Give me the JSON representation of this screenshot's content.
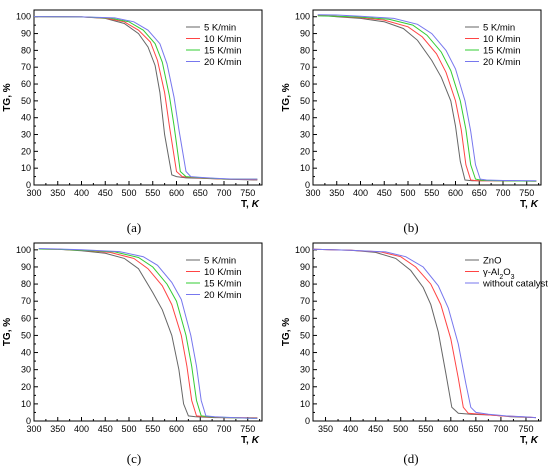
{
  "chart_data": [
    {
      "type": "line",
      "caption": "(a)",
      "xlabel": "T,",
      "xlabel_unit": "K",
      "ylabel": "TG, %",
      "xlim": [
        300,
        780
      ],
      "ylim": [
        0,
        104
      ],
      "xticks": [
        300,
        350,
        400,
        450,
        500,
        550,
        600,
        650,
        700,
        750
      ],
      "yticks": [
        0,
        10,
        20,
        30,
        40,
        50,
        60,
        70,
        80,
        90,
        100
      ],
      "legend_position": "top-right",
      "series": [
        {
          "name": "5 K/min",
          "color": "#666666",
          "x": [
            300,
            400,
            450,
            490,
            520,
            540,
            555,
            565,
            575,
            590,
            600,
            620,
            650,
            700,
            770
          ],
          "y": [
            100.1,
            99.9,
            99,
            96,
            90,
            82,
            71,
            55,
            30,
            6,
            5,
            4.2,
            4,
            3.5,
            3
          ]
        },
        {
          "name": "10 K/min",
          "color": "#ff4444",
          "x": [
            300,
            400,
            450,
            490,
            520,
            545,
            560,
            575,
            585,
            600,
            612,
            630,
            660,
            700,
            770
          ],
          "y": [
            100.1,
            99.9,
            99.2,
            97,
            92,
            85,
            74,
            55,
            35,
            8,
            5,
            4.5,
            4,
            3.5,
            3.2
          ]
        },
        {
          "name": "15 K/min",
          "color": "#33cc33",
          "x": [
            300,
            400,
            460,
            500,
            530,
            555,
            570,
            585,
            595,
            608,
            620,
            640,
            670,
            710,
            770
          ],
          "y": [
            100.1,
            99.9,
            99.2,
            97,
            92,
            84,
            73,
            53,
            35,
            8,
            5,
            4.5,
            4,
            3.5,
            3.5
          ]
        },
        {
          "name": "20 K/min",
          "color": "#7777ee",
          "x": [
            300,
            400,
            470,
            510,
            540,
            565,
            580,
            595,
            605,
            620,
            630,
            650,
            680,
            720,
            770
          ],
          "y": [
            100.1,
            99.9,
            99.3,
            97,
            92,
            84,
            72,
            52,
            33,
            8,
            5,
            4.5,
            4,
            3.5,
            3.5
          ]
        }
      ]
    },
    {
      "type": "line",
      "caption": "(b)",
      "xlabel": "T,",
      "xlabel_unit": "K",
      "ylabel": "TG, %",
      "xlim": [
        300,
        780
      ],
      "ylim": [
        0,
        104
      ],
      "xticks": [
        300,
        350,
        400,
        450,
        500,
        550,
        600,
        650,
        700,
        750
      ],
      "yticks": [
        0,
        10,
        20,
        30,
        40,
        50,
        60,
        70,
        80,
        90,
        100
      ],
      "legend_position": "top-right",
      "series": [
        {
          "name": "5 K/min",
          "color": "#666666",
          "x": [
            310,
            350,
            400,
            450,
            490,
            520,
            550,
            570,
            590,
            600,
            610,
            620,
            635,
            660,
            700,
            770
          ],
          "y": [
            101,
            100,
            99,
            97,
            93,
            86,
            74,
            64,
            50,
            35,
            14,
            3,
            2.5,
            2.5,
            2.5,
            2.3
          ]
        },
        {
          "name": "10 K/min",
          "color": "#ff4444",
          "x": [
            310,
            350,
            400,
            450,
            500,
            530,
            560,
            580,
            600,
            612,
            622,
            632,
            645,
            680,
            770
          ],
          "y": [
            101,
            100.2,
            99.5,
            98,
            94,
            88,
            78,
            67,
            50,
            33,
            12,
            3,
            2.5,
            2.5,
            2.3
          ]
        },
        {
          "name": "15 K/min",
          "color": "#33cc33",
          "x": [
            310,
            350,
            400,
            460,
            510,
            540,
            570,
            590,
            610,
            622,
            632,
            642,
            655,
            690,
            770
          ],
          "y": [
            100.5,
            100.3,
            99.8,
            98.5,
            95,
            89,
            79,
            68,
            50,
            33,
            12,
            3.5,
            2.8,
            2.5,
            2.3
          ]
        },
        {
          "name": "20 K/min",
          "color": "#7777ee",
          "x": [
            310,
            350,
            400,
            470,
            520,
            550,
            580,
            600,
            620,
            632,
            642,
            652,
            665,
            700,
            770
          ],
          "y": [
            101.2,
            101,
            100.3,
            99,
            95.5,
            90,
            80,
            69,
            50,
            32,
            12,
            3.5,
            3,
            2.7,
            2.5
          ]
        }
      ]
    },
    {
      "type": "line",
      "caption": "(c)",
      "xlabel": "T,",
      "xlabel_unit": "K",
      "ylabel": "TG, %",
      "xlim": [
        300,
        780
      ],
      "ylim": [
        0,
        104
      ],
      "xticks": [
        300,
        350,
        400,
        450,
        500,
        550,
        600,
        650,
        700,
        750
      ],
      "yticks": [
        0,
        10,
        20,
        30,
        40,
        50,
        60,
        70,
        80,
        90,
        100
      ],
      "legend_position": "top-right",
      "series": [
        {
          "name": "5 K/min",
          "color": "#666666",
          "x": [
            310,
            350,
            400,
            450,
            490,
            520,
            550,
            570,
            590,
            605,
            615,
            625,
            640,
            680,
            770
          ],
          "y": [
            100.5,
            100.3,
            99.5,
            98,
            95,
            89,
            75,
            65,
            50,
            30,
            10,
            3,
            2.5,
            2,
            1.8
          ]
        },
        {
          "name": "10 K/min",
          "color": "#ff4444",
          "x": [
            310,
            350,
            400,
            460,
            510,
            540,
            570,
            590,
            610,
            622,
            632,
            642,
            660,
            700,
            770
          ],
          "y": [
            100.5,
            100.3,
            99.8,
            98.5,
            95,
            89,
            79,
            68,
            50,
            32,
            12,
            3,
            2.5,
            2,
            1.8
          ]
        },
        {
          "name": "15 K/min",
          "color": "#33cc33",
          "x": [
            310,
            350,
            400,
            470,
            520,
            550,
            580,
            600,
            620,
            632,
            642,
            652,
            670,
            710,
            770
          ],
          "y": [
            100.5,
            100.3,
            99.8,
            98.8,
            95.5,
            90,
            80,
            70,
            50,
            32,
            12,
            3,
            2.5,
            2,
            1.5
          ]
        },
        {
          "name": "20 K/min",
          "color": "#7777ee",
          "x": [
            310,
            350,
            400,
            480,
            530,
            560,
            590,
            610,
            630,
            642,
            652,
            662,
            680,
            720,
            770
          ],
          "y": [
            100.8,
            100.5,
            100,
            99,
            96,
            91,
            81,
            71,
            50,
            32,
            12,
            3,
            2.5,
            2,
            1.5
          ]
        }
      ]
    },
    {
      "type": "line",
      "caption": "(d)",
      "xlabel": "T,",
      "xlabel_unit": "K",
      "ylabel": "TG, %",
      "xlim": [
        325,
        780
      ],
      "ylim": [
        0,
        104
      ],
      "xticks": [
        350,
        400,
        450,
        500,
        550,
        600,
        650,
        700,
        750
      ],
      "yticks": [
        0,
        10,
        20,
        30,
        40,
        50,
        60,
        70,
        80,
        90,
        100
      ],
      "legend_position": "top-right",
      "series": [
        {
          "name": "ZnO",
          "name_parts": [
            "ZnO"
          ],
          "color": "#666666",
          "x": [
            325,
            400,
            450,
            490,
            520,
            545,
            560,
            575,
            590,
            602,
            615,
            640,
            680,
            720,
            770
          ],
          "y": [
            100.3,
            99.8,
            98.5,
            95,
            88,
            78,
            68,
            52,
            28,
            8,
            4.5,
            4,
            3.5,
            2.5,
            2
          ]
        },
        {
          "name": "γ-Al2O3",
          "name_parts": [
            "γ-Al",
            "2",
            "O",
            "3"
          ],
          "color": "#ff4444",
          "x": [
            325,
            400,
            460,
            500,
            530,
            560,
            580,
            600,
            615,
            625,
            635,
            660,
            700,
            740,
            770
          ],
          "y": [
            100.3,
            99.8,
            98.8,
            96,
            90,
            80,
            68,
            48,
            25,
            8,
            4.5,
            4,
            3,
            2.5,
            2
          ]
        },
        {
          "name": "without catalyst",
          "name_parts": [
            "without catalyst"
          ],
          "color": "#7777ee",
          "x": [
            325,
            400,
            470,
            510,
            545,
            575,
            595,
            615,
            630,
            640,
            650,
            675,
            710,
            745,
            770
          ],
          "y": [
            100.3,
            99.8,
            98.8,
            96,
            90,
            79,
            66,
            45,
            22,
            8,
            5,
            4,
            3,
            2.5,
            2
          ]
        }
      ]
    }
  ]
}
